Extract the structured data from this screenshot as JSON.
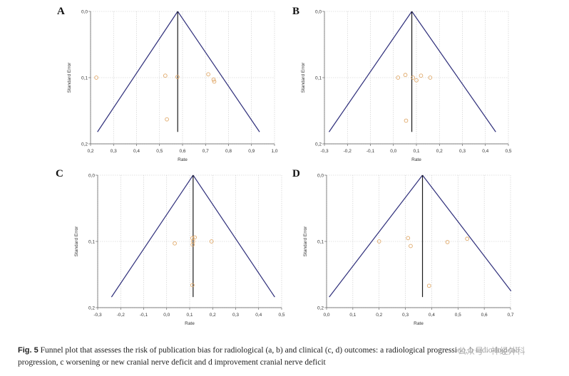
{
  "figure": {
    "caption_label": "Fig. 5",
    "caption_text": " Funnel plot that assesses the risk of publication bias for radiological (a, b) and clinical (c, d) outcomes: a radiological progression, b radio-logical progression, c worsening or new cranial nerve deficit and d improvement cranial nerve deficit",
    "watermark": "公众号 · 神经外科"
  },
  "colors": {
    "funnel": "#2e2e7a",
    "point": "#e0a868",
    "grid": "#c8c8c8",
    "axis": "#555555"
  },
  "chart_data": [
    {
      "type": "scatter",
      "panel": "A",
      "xlabel": "Rate",
      "ylabel": "Standard Error",
      "xlim": [
        0.2,
        1.0
      ],
      "ylim": [
        0.0,
        0.2
      ],
      "y_inverted": true,
      "xticks": [
        "0,2",
        "0,3",
        "0,4",
        "0,5",
        "0,6",
        "0,7",
        "0,8",
        "0,9",
        "1,0"
      ],
      "yticks": [
        "0,0",
        "0,1",
        "0,2"
      ],
      "grid": true,
      "pooled_estimate": 0.579,
      "funnel": {
        "apex": [
          0.579,
          0.0
        ],
        "base_left": [
          0.23,
          0.182
        ],
        "base_right": [
          0.935,
          0.182
        ]
      },
      "points": [
        {
          "x": 0.225,
          "y": 0.1
        },
        {
          "x": 0.525,
          "y": 0.097
        },
        {
          "x": 0.578,
          "y": 0.099
        },
        {
          "x": 0.712,
          "y": 0.095
        },
        {
          "x": 0.735,
          "y": 0.103
        },
        {
          "x": 0.738,
          "y": 0.106
        },
        {
          "x": 0.532,
          "y": 0.163
        }
      ]
    },
    {
      "type": "scatter",
      "panel": "B",
      "xlabel": "Rate",
      "ylabel": "Standard Error",
      "xlim": [
        -0.3,
        0.5
      ],
      "ylim": [
        0.0,
        0.2
      ],
      "y_inverted": true,
      "xticks": [
        "-0,3",
        "-0,2",
        "-0,1",
        "0,0",
        "0,1",
        "0,2",
        "0,3",
        "0,4",
        "0,5"
      ],
      "yticks": [
        "0,0",
        "0,1",
        "0,2"
      ],
      "grid": true,
      "pooled_estimate": 0.08,
      "funnel": {
        "apex": [
          0.08,
          0.0
        ],
        "base_left": [
          -0.28,
          0.182
        ],
        "base_right": [
          0.445,
          0.182
        ]
      },
      "points": [
        {
          "x": 0.02,
          "y": 0.1
        },
        {
          "x": 0.052,
          "y": 0.096
        },
        {
          "x": 0.085,
          "y": 0.1
        },
        {
          "x": 0.1,
          "y": 0.104
        },
        {
          "x": 0.12,
          "y": 0.097
        },
        {
          "x": 0.16,
          "y": 0.1
        },
        {
          "x": 0.055,
          "y": 0.165
        }
      ]
    },
    {
      "type": "scatter",
      "panel": "C",
      "xlabel": "Rate",
      "ylabel": "Standard Error",
      "xlim": [
        -0.3,
        0.5
      ],
      "ylim": [
        0.0,
        0.2
      ],
      "y_inverted": true,
      "xticks": [
        "-0,3",
        "-0,2",
        "-0,1",
        "0,0",
        "0,1",
        "0,2",
        "0,3",
        "0,4",
        "0,5"
      ],
      "yticks": [
        "0,0",
        "0,1",
        "0,2"
      ],
      "grid": true,
      "pooled_estimate": 0.115,
      "funnel": {
        "apex": [
          0.115,
          0.0
        ],
        "base_left": [
          -0.24,
          0.184
        ],
        "base_right": [
          0.47,
          0.184
        ]
      },
      "points": [
        {
          "x": 0.035,
          "y": 0.103
        },
        {
          "x": 0.112,
          "y": 0.095
        },
        {
          "x": 0.122,
          "y": 0.094
        },
        {
          "x": 0.115,
          "y": 0.1
        },
        {
          "x": 0.113,
          "y": 0.105
        },
        {
          "x": 0.195,
          "y": 0.1
        },
        {
          "x": 0.112,
          "y": 0.166
        }
      ]
    },
    {
      "type": "scatter",
      "panel": "D",
      "xlabel": "Rate",
      "ylabel": "Standard Error",
      "xlim": [
        0.0,
        0.7
      ],
      "ylim": [
        0.0,
        0.2
      ],
      "y_inverted": true,
      "xticks": [
        "0,0",
        "0,1",
        "0,2",
        "0,3",
        "0,4",
        "0,5",
        "0,6",
        "0,7"
      ],
      "yticks": [
        "0,0",
        "0,1",
        "0,2"
      ],
      "grid": true,
      "pooled_estimate": 0.365,
      "funnel": {
        "apex": [
          0.365,
          0.0
        ],
        "base_left": [
          0.01,
          0.184
        ],
        "base_right": [
          0.702,
          0.175
        ]
      },
      "points": [
        {
          "x": 0.2,
          "y": 0.1
        },
        {
          "x": 0.31,
          "y": 0.095
        },
        {
          "x": 0.32,
          "y": 0.107
        },
        {
          "x": 0.46,
          "y": 0.101
        },
        {
          "x": 0.535,
          "y": 0.096
        },
        {
          "x": 0.39,
          "y": 0.167
        }
      ]
    }
  ]
}
